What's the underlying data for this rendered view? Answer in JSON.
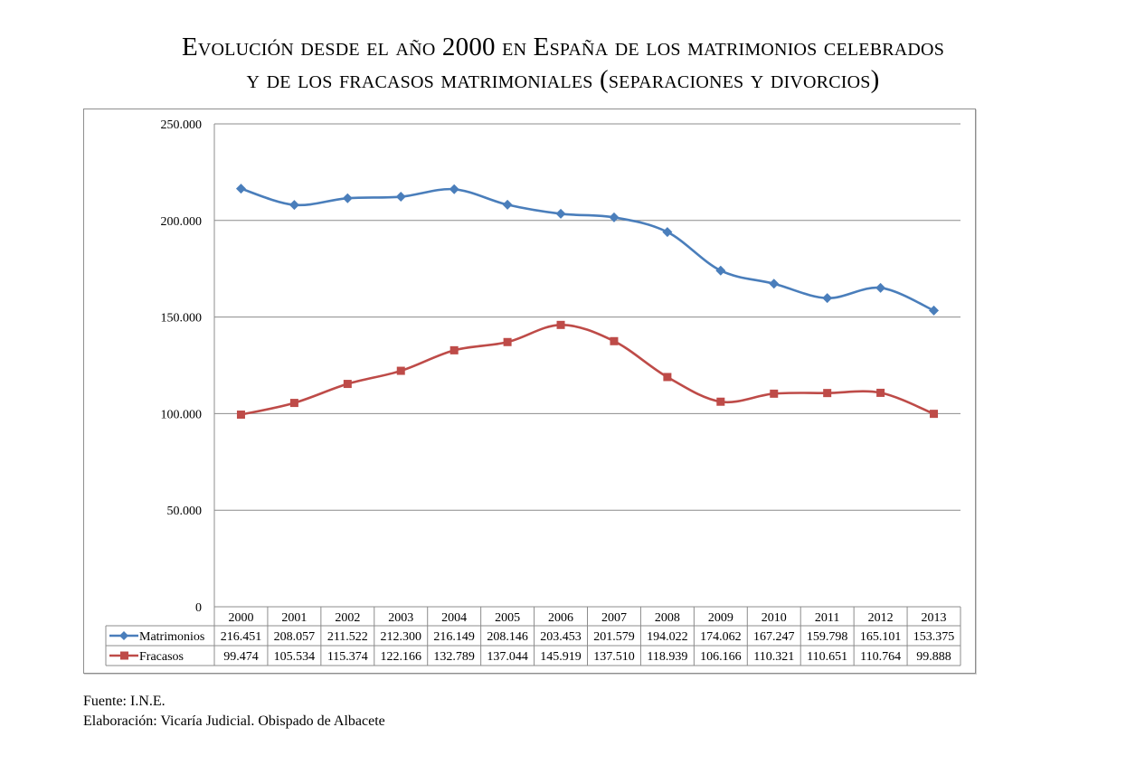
{
  "title_line1": "Evolución desde el año 2000 en España de los matrimonios celebrados",
  "title_line2": "y de los fracasos matrimoniales (separaciones y divorcios)",
  "footer": {
    "source": "Fuente: I.N.E.",
    "elaboration": "Elaboración: Vicaría Judicial. Obispado de Albacete"
  },
  "chart_data": {
    "type": "line",
    "title": "Evolución desde el año 2000 en España de los matrimonios celebrados y de los fracasos matrimoniales (separaciones y divorcios)",
    "xlabel": "",
    "ylabel": "",
    "categories": [
      "2000",
      "2001",
      "2002",
      "2003",
      "2004",
      "2005",
      "2006",
      "2007",
      "2008",
      "2009",
      "2010",
      "2011",
      "2012",
      "2013"
    ],
    "ylim": [
      0,
      250000
    ],
    "yticks": [
      0,
      50000,
      100000,
      150000,
      200000,
      250000
    ],
    "ytick_labels": [
      "0",
      "50.000",
      "100.000",
      "150.000",
      "200.000",
      "250.000"
    ],
    "grid": true,
    "smooth": true,
    "legend_placement": "data-table-below",
    "series": [
      {
        "name": "Matrimonios",
        "color": "#4a7ebb",
        "marker": "diamond",
        "values": [
          216451,
          208057,
          211522,
          212300,
          216149,
          208146,
          203453,
          201579,
          194022,
          174062,
          167247,
          159798,
          165101,
          153375
        ],
        "labels": [
          "216.451",
          "208.057",
          "211.522",
          "212.300",
          "216.149",
          "208.146",
          "203.453",
          "201.579",
          "194.022",
          "174.062",
          "167.247",
          "159.798",
          "165.101",
          "153.375"
        ]
      },
      {
        "name": "Fracasos",
        "color": "#be4b48",
        "marker": "square",
        "values": [
          99474,
          105534,
          115374,
          122166,
          132789,
          137044,
          145919,
          137510,
          118939,
          106166,
          110321,
          110651,
          110764,
          99888
        ],
        "labels": [
          "99.474",
          "105.534",
          "115.374",
          "122.166",
          "132.789",
          "137.044",
          "145.919",
          "137.510",
          "118.939",
          "106.166",
          "110.321",
          "110.651",
          "110.764",
          "99.888"
        ]
      }
    ]
  }
}
